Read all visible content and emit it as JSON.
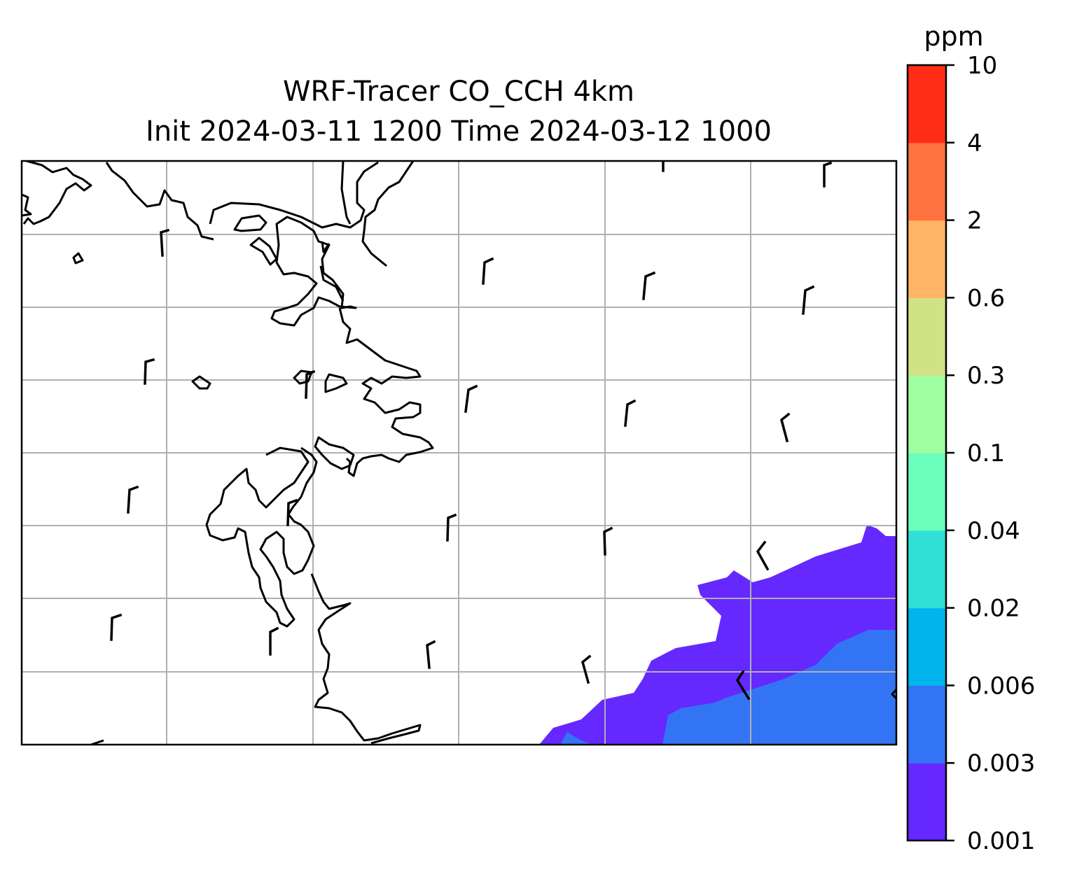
{
  "title": {
    "line1": "WRF-Tracer CO_CCH 4km",
    "line2": "Init 2024-03-11 1200 Time 2024-03-12 1000"
  },
  "colorbar": {
    "unit": "ppm",
    "levels": [
      "0.001",
      "0.003",
      "0.006",
      "0.02",
      "0.04",
      "0.1",
      "0.3",
      "0.6",
      "2",
      "4",
      "10"
    ],
    "colors": [
      "#6528ff",
      "#3374f5",
      "#00b4ec",
      "#2fe0d6",
      "#6affbc",
      "#9dffa0",
      "#d1e286",
      "#ffb563",
      "#ff7341",
      "#ff2c16"
    ]
  },
  "map": {
    "gridlines": true,
    "grid_color": "#b0b0b0",
    "coastline_color": "#000000",
    "wind_barbs": true
  }
}
